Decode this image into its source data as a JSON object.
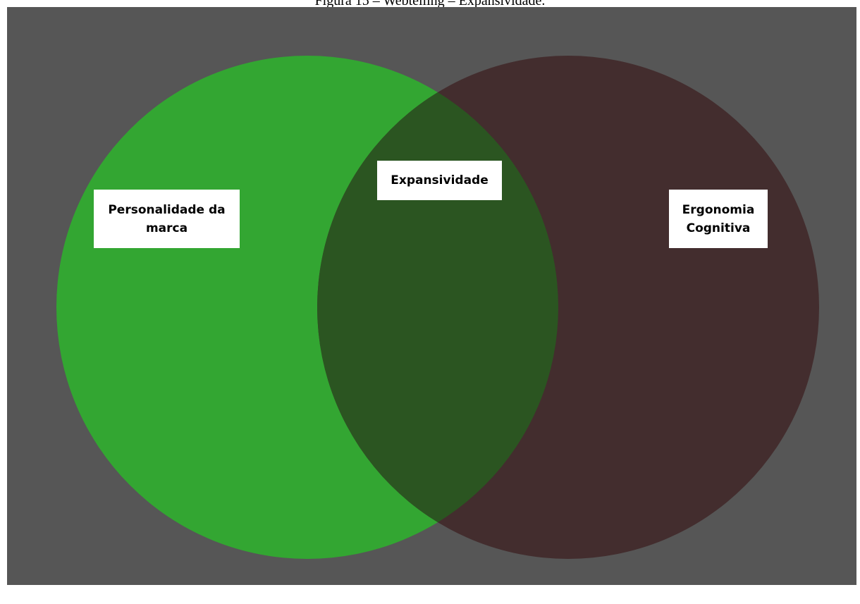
{
  "caption": "Figura 15 – Webtelling – Expansividade.",
  "diagram": {
    "type": "venn",
    "colors": {
      "background": "#565656",
      "left_circle": "#33a632",
      "right_circle": "#432d2e",
      "overlap": "#2b5521"
    },
    "sets": [
      {
        "label": "Personalidade da\nmarca"
      },
      {
        "label": "Ergonomia\nCognitiva"
      }
    ],
    "intersection": {
      "label": "Expansividade"
    }
  }
}
